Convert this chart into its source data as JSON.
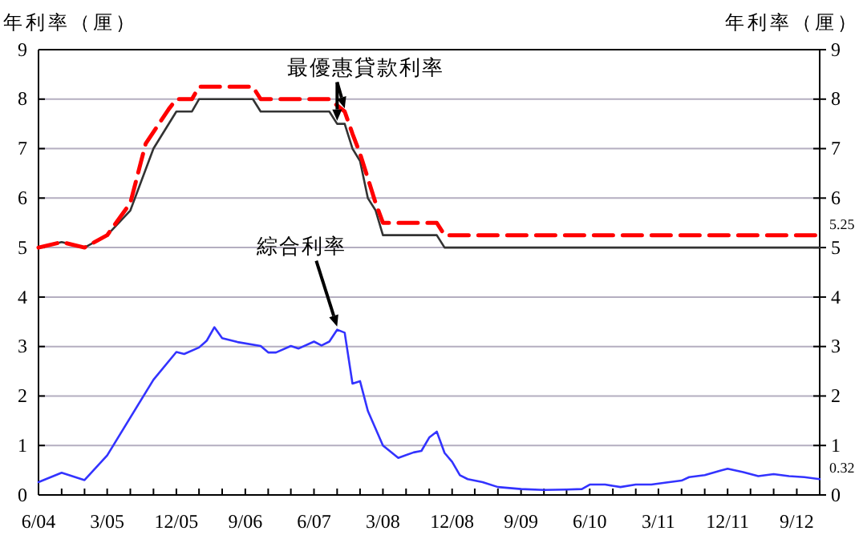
{
  "chart_data": {
    "type": "line",
    "ylabel": "年利率（厘）",
    "y2label": "年利率（厘）",
    "xlim": [
      "2004-06",
      "2012-12"
    ],
    "xticks": [
      {
        "value": "2004-06",
        "label": "6/04"
      },
      {
        "value": "2004-09",
        "label": null
      },
      {
        "value": "2004-12",
        "label": null
      },
      {
        "value": "2005-03",
        "label": "3/05"
      },
      {
        "value": "2005-06",
        "label": null
      },
      {
        "value": "2005-09",
        "label": null
      },
      {
        "value": "2005-12",
        "label": "12/05"
      },
      {
        "value": "2006-03",
        "label": null
      },
      {
        "value": "2006-06",
        "label": null
      },
      {
        "value": "2006-09",
        "label": "9/06"
      },
      {
        "value": "2006-12",
        "label": null
      },
      {
        "value": "2007-03",
        "label": null
      },
      {
        "value": "2007-06",
        "label": "6/07"
      },
      {
        "value": "2007-09",
        "label": null
      },
      {
        "value": "2007-12",
        "label": null
      },
      {
        "value": "2008-03",
        "label": "3/08"
      },
      {
        "value": "2008-06",
        "label": null
      },
      {
        "value": "2008-09",
        "label": null
      },
      {
        "value": "2008-12",
        "label": "12/08"
      },
      {
        "value": "2009-03",
        "label": null
      },
      {
        "value": "2009-06",
        "label": null
      },
      {
        "value": "2009-09",
        "label": "9/09"
      },
      {
        "value": "2009-12",
        "label": null
      },
      {
        "value": "2010-03",
        "label": null
      },
      {
        "value": "2010-06",
        "label": "6/10"
      },
      {
        "value": "2010-09",
        "label": null
      },
      {
        "value": "2010-12",
        "label": null
      },
      {
        "value": "2011-03",
        "label": "3/11"
      },
      {
        "value": "2011-06",
        "label": null
      },
      {
        "value": "2011-09",
        "label": null
      },
      {
        "value": "2011-12",
        "label": "12/11"
      },
      {
        "value": "2012-03",
        "label": null
      },
      {
        "value": "2012-06",
        "label": null
      },
      {
        "value": "2012-09",
        "label": "9/12"
      },
      {
        "value": "2012-12",
        "label": null
      }
    ],
    "ylim": [
      0,
      9
    ],
    "yticks": [
      0,
      1,
      2,
      3,
      4,
      5,
      6,
      7,
      8,
      9
    ],
    "y2lim": [
      0,
      9
    ],
    "y2ticks": [
      0,
      1,
      2,
      3,
      4,
      5,
      6,
      7,
      8,
      9
    ],
    "grid": "y",
    "marker": "none",
    "series": [
      {
        "color": "#ff0000",
        "line_style": "dashed",
        "x": [
          "2004-06",
          "2004-09",
          "2004-12",
          "2005-03",
          "2005-06",
          "2005-08",
          "2005-11",
          "2005-12",
          "2006-02",
          "2006-03",
          "2006-10",
          "2006-11",
          "2007-08",
          "2007-10",
          "2007-11",
          "2007-12",
          "2008-02",
          "2008-03",
          "2008-10",
          "2008-11",
          "2012-12"
        ],
        "values": [
          5.0,
          5.11,
          5.0,
          5.25,
          5.9,
          7.1,
          7.8,
          8.0,
          8.0,
          8.25,
          8.25,
          8.0,
          8.0,
          7.75,
          7.3,
          6.9,
          5.9,
          5.5,
          5.5,
          5.25,
          5.25
        ]
      },
      {
        "color": "#333333",
        "line_style": "solid",
        "x": [
          "2004-06",
          "2004-09",
          "2004-12",
          "2005-03",
          "2005-06",
          "2005-09",
          "2005-12",
          "2006-02",
          "2006-03",
          "2006-10",
          "2006-11",
          "2007-08",
          "2007-09",
          "2007-10",
          "2007-11",
          "2007-12",
          "2008-01",
          "2008-02",
          "2008-03",
          "2008-10",
          "2008-11",
          "2012-12"
        ],
        "values": [
          5.0,
          5.11,
          5.0,
          5.25,
          5.75,
          7.0,
          7.75,
          7.75,
          8.0,
          8.0,
          7.75,
          7.75,
          7.5,
          7.5,
          7.0,
          6.75,
          6.0,
          5.75,
          5.25,
          5.25,
          5.0,
          5.0
        ]
      },
      {
        "color": "#3333ff",
        "line_style": "solid",
        "x": [
          "2004-06",
          "2004-09",
          "2004-12",
          "2005-03",
          "2005-09",
          "2005-12",
          "2006-01",
          "2006-03",
          "2006-04",
          "2006-05",
          "2006-06",
          "2006-08",
          "2006-11",
          "2006-12",
          "2007-01",
          "2007-03",
          "2007-04",
          "2007-06",
          "2007-07",
          "2007-08",
          "2007-09",
          "2007-10",
          "2007-11",
          "2007-12",
          "2008-01",
          "2008-03",
          "2008-05",
          "2008-07",
          "2008-08",
          "2008-09",
          "2008-10",
          "2008-11",
          "2008-12",
          "2009-01",
          "2009-02",
          "2009-04",
          "2009-06",
          "2009-09",
          "2009-12",
          "2010-03",
          "2010-05",
          "2010-06",
          "2010-08",
          "2010-10",
          "2010-12",
          "2011-02",
          "2011-04",
          "2011-06",
          "2011-07",
          "2011-09",
          "2011-11",
          "2011-12",
          "2012-02",
          "2012-04",
          "2012-06",
          "2012-08",
          "2012-10",
          "2012-12"
        ],
        "values": [
          0.26,
          0.45,
          0.3,
          0.8,
          2.33,
          2.89,
          2.85,
          2.98,
          3.12,
          3.39,
          3.17,
          3.09,
          3.01,
          2.88,
          2.88,
          3.01,
          2.96,
          3.1,
          3.02,
          3.1,
          3.34,
          3.28,
          2.25,
          2.3,
          1.7,
          1.0,
          0.75,
          0.86,
          0.89,
          1.16,
          1.28,
          0.85,
          0.67,
          0.4,
          0.32,
          0.26,
          0.16,
          0.12,
          0.1,
          0.11,
          0.12,
          0.21,
          0.21,
          0.16,
          0.21,
          0.21,
          0.25,
          0.29,
          0.36,
          0.4,
          0.49,
          0.53,
          0.46,
          0.38,
          0.42,
          0.38,
          0.36,
          0.32
        ]
      }
    ],
    "annotations": [
      {
        "text": "最優惠貸款利率",
        "x": "2007-09",
        "y": 7.5
      },
      {
        "text": "綜合利率",
        "x": "2007-09",
        "y": 3.34
      },
      {
        "text": "5.25",
        "x": "2012-12",
        "y": 5.25
      },
      {
        "text": "0.32",
        "x": "2012-12",
        "y": 0.32
      }
    ]
  }
}
